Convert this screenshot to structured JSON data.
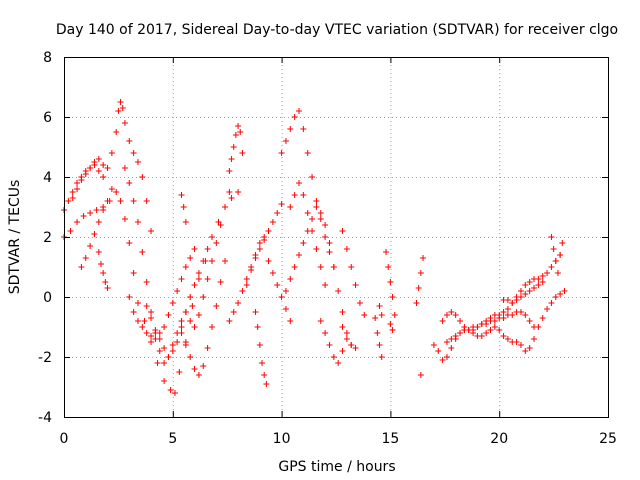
{
  "chart_data": {
    "type": "scatter",
    "title": "Day 140 of 2017, Sidereal Day-to-day VTEC variation (SDTVAR) for receiver clgo",
    "xlabel": "GPS time / hours",
    "ylabel": "SDTVAR / TECUs",
    "xlim": [
      0,
      25
    ],
    "ylim": [
      -4,
      8
    ],
    "xticks": [
      0,
      5,
      10,
      15,
      20,
      25
    ],
    "yticks": [
      -4,
      -2,
      0,
      2,
      4,
      6,
      8
    ],
    "grid": true,
    "marker": "+",
    "series": [
      {
        "name": "SDTVAR",
        "color": "#ff0000",
        "tracks": [
          {
            "x": [
              0.0,
              0.3,
              0.6,
              0.9,
              1.2,
              1.5,
              1.8,
              2.1,
              2.4,
              2.6,
              2.8,
              3.0,
              3.2,
              3.4,
              3.7,
              4.0,
              4.3,
              4.6,
              4.9,
              5.1,
              5.3,
              5.6,
              5.9,
              6.2,
              6.5,
              6.8,
              7.1,
              7.4,
              7.7,
              8.0
            ],
            "y": [
              2.0,
              2.2,
              2.5,
              2.7,
              2.8,
              2.9,
              3.0,
              3.2,
              3.5,
              3.2,
              2.6,
              1.8,
              0.8,
              -0.2,
              -0.8,
              -1.5,
              -2.2,
              -2.8,
              -3.1,
              -3.2,
              -2.5,
              -1.5,
              -0.3,
              0.6,
              1.2,
              2.0,
              2.5,
              3.0,
              3.3,
              3.5
            ]
          },
          {
            "x": [
              0.0,
              0.2,
              0.4,
              0.6,
              0.8,
              1.0,
              1.2,
              1.4,
              1.6,
              1.8,
              2.0,
              2.2,
              2.4,
              2.5,
              2.6,
              2.7,
              2.8,
              3.0,
              3.2,
              3.4,
              3.6,
              3.8,
              4.0
            ],
            "y": [
              2.9,
              3.2,
              3.5,
              3.8,
              4.0,
              4.2,
              4.3,
              4.4,
              4.2,
              4.0,
              4.3,
              4.8,
              5.5,
              6.2,
              6.5,
              6.3,
              5.8,
              5.2,
              4.8,
              4.5,
              4.0,
              3.2,
              2.2
            ]
          },
          {
            "x": [
              0.4,
              0.6,
              0.8,
              1.0,
              1.2,
              1.4,
              1.6,
              1.8
            ],
            "y": [
              3.3,
              3.6,
              3.9,
              4.1,
              4.3,
              4.5,
              4.6,
              4.4
            ]
          },
          {
            "x": [
              0.8,
              1.0,
              1.2,
              1.4,
              1.6,
              1.8,
              2.0,
              2.2
            ],
            "y": [
              1.0,
              1.3,
              1.7,
              2.1,
              2.5,
              2.9,
              3.2,
              3.6
            ]
          },
          {
            "x": [
              1.6,
              1.7,
              1.8,
              1.9,
              2.0
            ],
            "y": [
              1.5,
              1.1,
              0.8,
              0.5,
              0.3
            ]
          },
          {
            "x": [
              2.8,
              3.0,
              3.2,
              3.4,
              3.6,
              3.8,
              4.0,
              4.2,
              4.4,
              4.6,
              4.8,
              5.0,
              5.2,
              5.4
            ],
            "y": [
              4.3,
              3.8,
              3.2,
              2.5,
              1.5,
              0.5,
              -0.5,
              -1.2,
              -1.8,
              -2.2,
              -2.0,
              -1.6,
              -1.2,
              -0.8
            ]
          },
          {
            "x": [
              3.0,
              3.2,
              3.4,
              3.6,
              3.8,
              4.0,
              4.2,
              4.4,
              4.6,
              4.8,
              5.0,
              5.2,
              5.4,
              5.6,
              5.8,
              6.0
            ],
            "y": [
              0.0,
              -0.5,
              -0.8,
              -1.0,
              -1.2,
              -1.3,
              -1.4,
              -1.2,
              -1.0,
              -0.6,
              -0.2,
              0.2,
              0.6,
              1.0,
              1.3,
              1.6
            ]
          },
          {
            "x": [
              3.8,
              4.0,
              4.2,
              4.4,
              4.6,
              4.8,
              5.0,
              5.2,
              5.4,
              5.6,
              5.8,
              6.0,
              6.2,
              6.4,
              6.6
            ],
            "y": [
              -0.3,
              -0.7,
              -1.1,
              -1.4,
              -1.7,
              -2.0,
              -1.8,
              -1.5,
              -1.0,
              -0.5,
              0.0,
              0.4,
              0.8,
              1.2,
              1.6
            ]
          },
          {
            "x": [
              5.4,
              5.6,
              5.8,
              6.0,
              6.2,
              6.4,
              6.6,
              6.8,
              7.0,
              7.2,
              7.4
            ],
            "y": [
              -1.2,
              -1.6,
              -2.0,
              -2.4,
              -2.6,
              -2.3,
              -1.7,
              -1.0,
              -0.3,
              0.5,
              1.2
            ]
          },
          {
            "x": [
              5.6,
              5.8,
              6.0,
              6.2,
              6.4,
              6.6,
              6.8,
              7.0,
              7.2,
              7.4,
              7.6
            ],
            "y": [
              -0.5,
              -0.8,
              -1.0,
              -0.6,
              0.0,
              0.6,
              1.2,
              1.8,
              2.4,
              3.0,
              3.5
            ]
          },
          {
            "x": [
              5.4,
              5.5,
              5.6
            ],
            "y": [
              3.4,
              3.0,
              2.5
            ]
          },
          {
            "x": [
              7.6,
              7.7,
              7.8,
              7.9,
              8.0,
              8.1,
              8.2
            ],
            "y": [
              4.2,
              4.6,
              5.0,
              5.4,
              5.7,
              5.5,
              4.8
            ]
          },
          {
            "x": [
              7.6,
              7.8,
              8.0,
              8.2,
              8.4,
              8.6,
              8.8,
              9.0,
              9.2,
              9.4,
              9.6,
              9.8,
              10.0
            ],
            "y": [
              -0.8,
              -0.5,
              -0.2,
              0.2,
              0.6,
              1.0,
              1.3,
              1.6,
              1.9,
              2.2,
              2.5,
              2.8,
              3.1
            ]
          },
          {
            "x": [
              8.4,
              8.6,
              8.8,
              9.0,
              9.2,
              9.4
            ],
            "y": [
              0.4,
              0.9,
              1.4,
              1.8,
              2.0,
              2.2
            ]
          },
          {
            "x": [
              8.8,
              8.9,
              9.0,
              9.1,
              9.2,
              9.3
            ],
            "y": [
              -0.5,
              -1.0,
              -1.6,
              -2.2,
              -2.6,
              -2.9
            ]
          },
          {
            "x": [
              9.4,
              9.6,
              9.8,
              10.0,
              10.2,
              10.4
            ],
            "y": [
              1.2,
              0.8,
              0.4,
              0.0,
              -0.4,
              -0.8
            ]
          },
          {
            "x": [
              10.0,
              10.2,
              10.4,
              10.6,
              10.8,
              11.0,
              11.2,
              11.4,
              11.6,
              11.8,
              12.0,
              12.2,
              12.4
            ],
            "y": [
              4.8,
              5.2,
              5.6,
              6.0,
              6.2,
              5.6,
              4.8,
              4.0,
              3.2,
              2.6,
              2.0,
              1.5,
              1.0
            ]
          },
          {
            "x": [
              10.2,
              10.4,
              10.6,
              10.8,
              11.0,
              11.2,
              11.4,
              11.6,
              11.8,
              12.0,
              12.2,
              12.4,
              12.6,
              12.8,
              13.0,
              13.2
            ],
            "y": [
              0.2,
              0.6,
              1.0,
              1.4,
              1.8,
              2.2,
              2.6,
              3.0,
              2.8,
              2.4,
              1.8,
              1.0,
              0.2,
              -0.5,
              -1.2,
              -1.6
            ]
          },
          {
            "x": [
              10.4,
              10.6,
              10.8,
              11.0,
              11.2,
              11.4,
              11.6,
              11.8,
              12.0
            ],
            "y": [
              3.0,
              3.4,
              3.8,
              3.4,
              2.8,
              2.2,
              1.6,
              1.0,
              0.4
            ]
          },
          {
            "x": [
              11.8,
              12.0,
              12.2,
              12.4,
              12.6,
              12.8
            ],
            "y": [
              -0.8,
              -1.2,
              -1.6,
              -2.0,
              -2.2,
              -1.8
            ]
          },
          {
            "x": [
              12.8,
              13.0,
              13.2,
              13.4,
              13.6,
              13.8
            ],
            "y": [
              2.2,
              1.6,
              1.0,
              0.4,
              -0.2,
              -0.6
            ]
          },
          {
            "x": [
              12.8,
              13.0,
              13.2,
              13.4
            ],
            "y": [
              -1.0,
              -1.4,
              -1.6,
              -1.7
            ]
          },
          {
            "x": [
              14.3,
              14.4,
              14.5,
              14.6
            ],
            "y": [
              -0.7,
              -1.2,
              -1.6,
              -2.0
            ]
          },
          {
            "x": [
              14.5,
              14.6
            ],
            "y": [
              -0.3,
              -0.6
            ]
          },
          {
            "x": [
              14.8,
              14.9,
              15.0,
              15.1,
              15.2
            ],
            "y": [
              1.5,
              1.0,
              0.5,
              0.0,
              -0.6
            ]
          },
          {
            "x": [
              15.0,
              15.1
            ],
            "y": [
              -0.9,
              -1.1
            ]
          },
          {
            "x": [
              16.2,
              16.3,
              16.4,
              16.5
            ],
            "y": [
              -0.2,
              0.3,
              0.8,
              1.3
            ]
          },
          {
            "x": [
              16.4
            ],
            "y": [
              -2.6
            ]
          },
          {
            "x": [
              17.0,
              17.2,
              17.4,
              17.6,
              17.8,
              18.0,
              18.2,
              18.4,
              18.6,
              18.8,
              19.0,
              19.2,
              19.4,
              19.6,
              19.8,
              20.0,
              20.2,
              20.4,
              20.6,
              20.8,
              21.0,
              21.2,
              21.4,
              21.6,
              21.8,
              22.0,
              22.2,
              22.4,
              22.6,
              22.8,
              23.0
            ],
            "y": [
              -1.6,
              -1.8,
              -2.1,
              -2.0,
              -1.7,
              -1.4,
              -1.2,
              -1.1,
              -1.1,
              -1.2,
              -1.3,
              -1.3,
              -1.2,
              -1.1,
              -1.0,
              -1.1,
              -1.3,
              -1.4,
              -1.5,
              -1.5,
              -1.6,
              -1.8,
              -1.7,
              -1.4,
              -1.0,
              -0.7,
              -0.4,
              -0.2,
              0.0,
              0.1,
              0.2
            ]
          },
          {
            "x": [
              17.4,
              17.6,
              17.8,
              18.0,
              18.2,
              18.4,
              18.6,
              18.8,
              19.0,
              19.2,
              19.4,
              19.6,
              19.8,
              20.0,
              20.2,
              20.4,
              20.6,
              20.8,
              21.0,
              21.2,
              21.4,
              21.6,
              21.8,
              22.0,
              22.2,
              22.4,
              22.6,
              22.8
            ],
            "y": [
              -0.8,
              -0.6,
              -0.5,
              -0.6,
              -0.8,
              -1.0,
              -1.1,
              -1.1,
              -1.0,
              -0.9,
              -0.8,
              -0.7,
              -0.6,
              -0.6,
              -0.5,
              -0.4,
              -0.2,
              0.0,
              0.2,
              0.4,
              0.5,
              0.6,
              0.6,
              0.7,
              0.8,
              1.0,
              1.2,
              1.4
            ]
          },
          {
            "x": [
              17.6,
              17.8,
              18.0,
              18.2,
              18.4,
              18.6,
              18.8,
              19.0,
              19.2,
              19.4,
              19.6,
              19.8,
              20.0,
              20.2,
              20.4,
              20.6,
              20.8,
              21.0,
              21.2,
              21.4,
              21.6
            ],
            "y": [
              -1.5,
              -1.4,
              -1.3,
              -1.2,
              -1.1,
              -1.1,
              -1.0,
              -1.0,
              -0.9,
              -0.9,
              -0.8,
              -0.8,
              -0.7,
              -0.7,
              -0.6,
              -0.6,
              -0.5,
              -0.5,
              -0.6,
              -0.8,
              -1.0
            ]
          },
          {
            "x": [
              20.2,
              20.4,
              20.6,
              20.8,
              21.0,
              21.2,
              21.4,
              21.6,
              21.8,
              22.0
            ],
            "y": [
              -0.1,
              -0.1,
              -0.2,
              -0.1,
              0.0,
              0.1,
              0.2,
              0.3,
              0.4,
              0.5
            ]
          },
          {
            "x": [
              22.4,
              22.5,
              22.6,
              22.7,
              22.8,
              22.9
            ],
            "y": [
              2.0,
              1.6,
              1.2,
              0.8,
              1.4,
              1.8
            ]
          }
        ]
      }
    ]
  }
}
